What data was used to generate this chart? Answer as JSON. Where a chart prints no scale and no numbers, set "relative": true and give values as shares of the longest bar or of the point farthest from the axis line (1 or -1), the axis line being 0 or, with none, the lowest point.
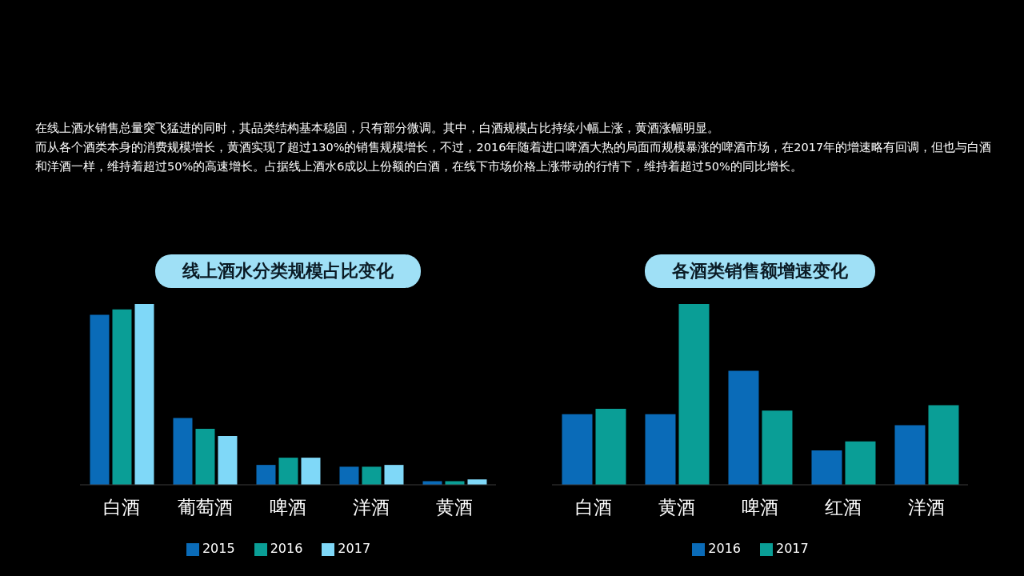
{
  "chart_data": [
    {
      "type": "bar",
      "title": "线上酒水分类规模占比变化",
      "relative": true,
      "legend": "bottom",
      "categories": [
        "白酒",
        "葡萄酒",
        "啤酒",
        "洋酒",
        "黄酒"
      ],
      "series": [
        {
          "name": "2015",
          "color": "#0a6bb8",
          "values": [
            0.94,
            0.37,
            0.11,
            0.1,
            0.02
          ]
        },
        {
          "name": "2016",
          "color": "#0a9e96",
          "values": [
            0.97,
            0.31,
            0.15,
            0.1,
            0.02
          ]
        },
        {
          "name": "2017",
          "color": "#7fd8f8",
          "values": [
            1,
            0.27,
            0.15,
            0.11,
            0.03
          ]
        }
      ],
      "annotations": [
        "在线上酒水销售总量突飞猛进的同时，其品类结构基本稳固，只有部分微调。其中，白酒规模占比持续小幅上涨，黄酒涨幅明显。",
        "而从各个酒类本身的消费规模增长，黄酒实现了超过130%的销售规模增长，不过，2016年随着进口啤酒大热的局面而规模暴涨的啤酒市场，在2017年的增速略有回调，但也与白酒和洋酒一样，维持着超过50%的高速增长。占据线上酒水6成以上份额的白酒，在线下市场价格上涨带动的行情下，维持着超过50%的同比增长。"
      ]
    },
    {
      "type": "bar",
      "title": "各酒类销售额增速变化",
      "relative": true,
      "legend": "bottom",
      "categories": [
        "白酒",
        "黄酒",
        "啤酒",
        "红酒",
        "洋酒"
      ],
      "series": [
        {
          "name": "2016",
          "color": "#0a6bb8",
          "values": [
            0.39,
            0.39,
            0.63,
            0.19,
            0.33
          ]
        },
        {
          "name": "2017",
          "color": "#0a9e96",
          "values": [
            0.42,
            1,
            0.41,
            0.24,
            0.44
          ]
        }
      ]
    }
  ]
}
